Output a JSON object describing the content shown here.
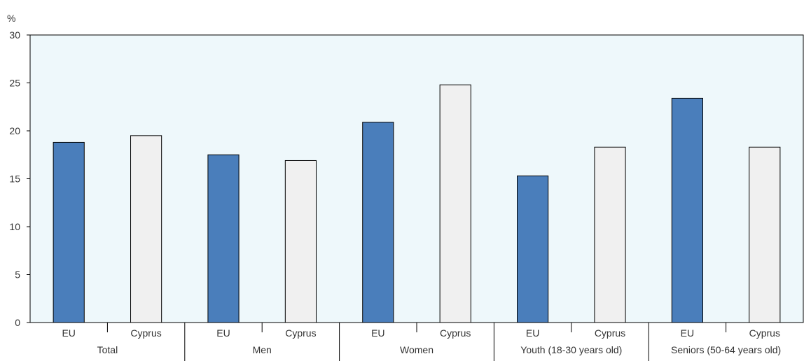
{
  "chart_data": {
    "type": "bar",
    "unit_label": "%",
    "ylim": [
      0,
      30
    ],
    "yticks": [
      0,
      5,
      10,
      15,
      20,
      25,
      30
    ],
    "groups": [
      "Total",
      "Men",
      "Women",
      "Youth (18-30 years old)",
      "Seniors (50-64 years old)"
    ],
    "series": [
      {
        "name": "EU",
        "color": "#4a7ebb",
        "values": [
          18.8,
          17.5,
          20.9,
          15.3,
          23.4
        ]
      },
      {
        "name": "Cyprus",
        "color": "#f0f0f0",
        "values": [
          19.5,
          16.9,
          24.8,
          18.3,
          18.3
        ]
      }
    ],
    "plot_background": "#eef8fb",
    "grid": false
  }
}
